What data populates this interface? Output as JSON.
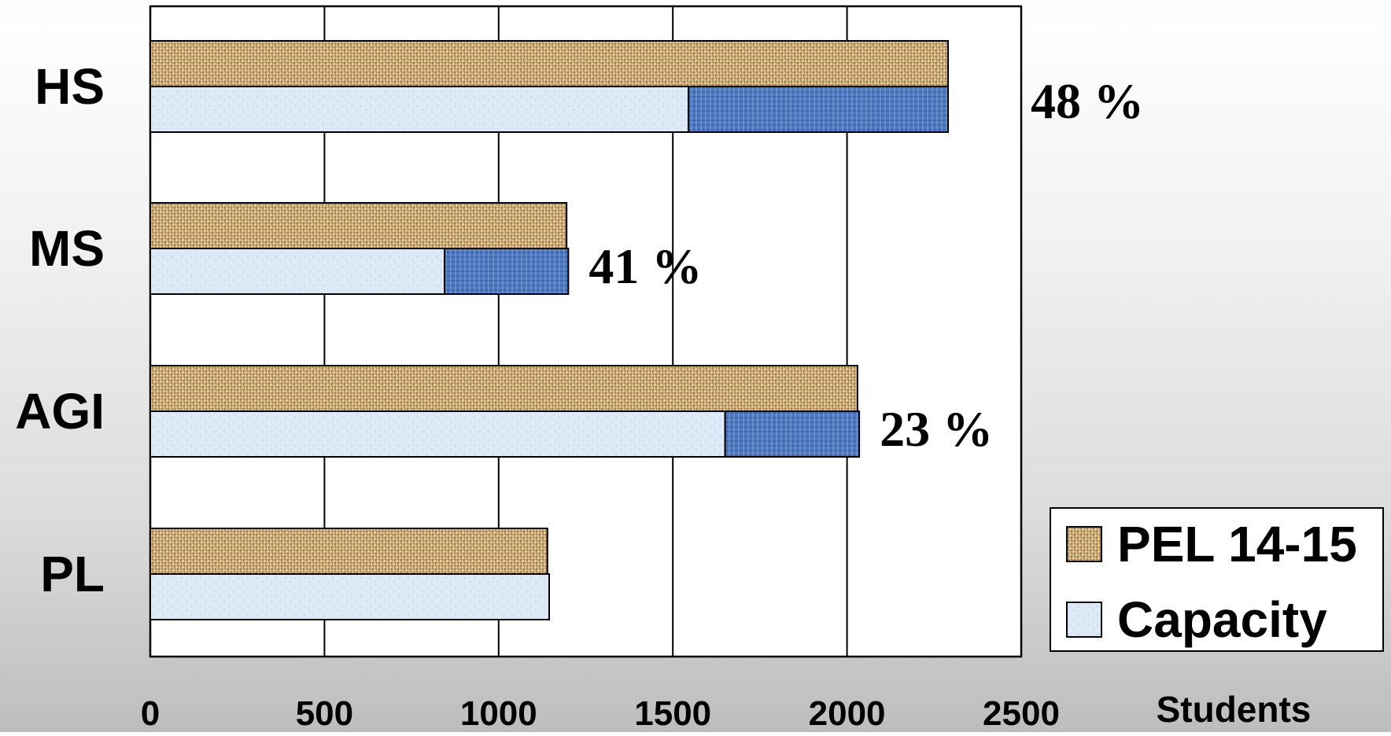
{
  "chart_data": {
    "type": "bar",
    "orientation": "horizontal",
    "categories": [
      "HS",
      "MS",
      "AGI",
      "PL"
    ],
    "series": [
      {
        "name": "PEL 14-15",
        "values": [
          2290,
          1195,
          2030,
          1140
        ],
        "color": "#c9a46a",
        "pattern": "woven"
      },
      {
        "name": "Capacity",
        "values": [
          1545,
          845,
          1650,
          1145
        ],
        "color": "#dde9f7",
        "pattern": "speckle"
      }
    ],
    "overflow": {
      "color": "#4f79c0",
      "values": [
        2290,
        1200,
        2035,
        null
      ]
    },
    "percent_labels": [
      "48 %",
      "41 %",
      "23 %",
      ""
    ],
    "xlabel": "Students",
    "xlim": [
      0,
      2500
    ],
    "xticks": [
      "0",
      "500",
      "1000",
      "1500",
      "2000",
      "2500"
    ],
    "grid": true,
    "legend_position": "bottom-right"
  }
}
